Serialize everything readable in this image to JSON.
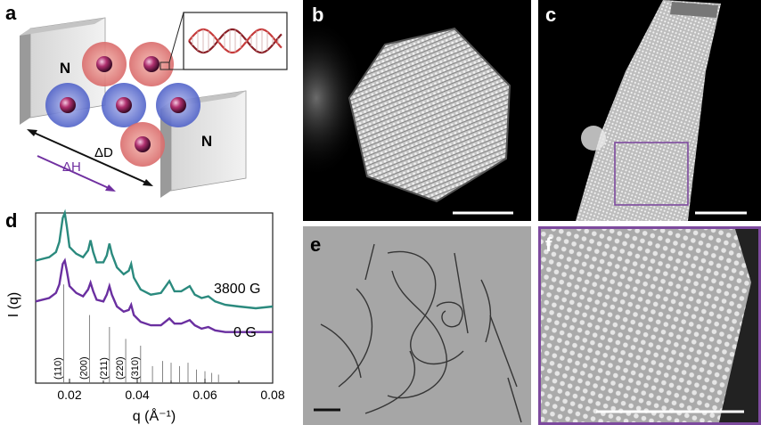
{
  "panel_labels": {
    "a": "a",
    "b": "b",
    "c": "c",
    "d": "d",
    "e": "e",
    "f": "f"
  },
  "schematic": {
    "magnet_label": "N",
    "delta_d": "ΔD",
    "delta_h": "ΔH"
  },
  "colors": {
    "accent_purple": "#7030a0",
    "teal": "#2b8a7e",
    "inset_border": "#7d4a9e",
    "red_shell": "#d96a6a",
    "blue_shell": "#5a6fd1"
  },
  "chart_data": {
    "type": "line",
    "ylabel": "I (q)",
    "xlabel": "q (Å⁻¹)",
    "xlim": [
      0.01,
      0.08
    ],
    "xticks": [
      "0.02",
      "0.04",
      "0.06",
      "0.08"
    ],
    "grid": false,
    "series": [
      {
        "name": "3800 G",
        "color": "#2b8a7e",
        "x": [
          0.01,
          0.014,
          0.016,
          0.017,
          0.018,
          0.0186,
          0.0192,
          0.02,
          0.022,
          0.024,
          0.0255,
          0.0262,
          0.027,
          0.028,
          0.03,
          0.031,
          0.0318,
          0.0325,
          0.034,
          0.036,
          0.0375,
          0.0382,
          0.039,
          0.041,
          0.044,
          0.047,
          0.0495,
          0.051,
          0.053,
          0.0555,
          0.057,
          0.059,
          0.061,
          0.063,
          0.066,
          0.07,
          0.075,
          0.08
        ],
        "y": [
          0.72,
          0.74,
          0.77,
          0.83,
          0.97,
          1.0,
          0.92,
          0.8,
          0.76,
          0.74,
          0.78,
          0.84,
          0.77,
          0.71,
          0.71,
          0.75,
          0.82,
          0.76,
          0.68,
          0.64,
          0.66,
          0.7,
          0.62,
          0.55,
          0.52,
          0.53,
          0.6,
          0.54,
          0.54,
          0.57,
          0.52,
          0.5,
          0.51,
          0.48,
          0.46,
          0.45,
          0.44,
          0.45
        ]
      },
      {
        "name": "0 G",
        "color": "#6a2fa0",
        "x": [
          0.01,
          0.014,
          0.016,
          0.017,
          0.018,
          0.0186,
          0.0192,
          0.02,
          0.022,
          0.024,
          0.0255,
          0.0262,
          0.027,
          0.028,
          0.03,
          0.031,
          0.0318,
          0.0325,
          0.034,
          0.036,
          0.0375,
          0.0382,
          0.039,
          0.041,
          0.044,
          0.047,
          0.0495,
          0.051,
          0.053,
          0.0555,
          0.057,
          0.059,
          0.061,
          0.063,
          0.066,
          0.07,
          0.075,
          0.08
        ],
        "y": [
          0.48,
          0.5,
          0.53,
          0.58,
          0.7,
          0.72,
          0.66,
          0.57,
          0.53,
          0.51,
          0.55,
          0.59,
          0.54,
          0.49,
          0.48,
          0.52,
          0.57,
          0.52,
          0.45,
          0.42,
          0.43,
          0.46,
          0.4,
          0.36,
          0.34,
          0.34,
          0.38,
          0.35,
          0.35,
          0.37,
          0.34,
          0.32,
          0.33,
          0.31,
          0.3,
          0.3,
          0.3,
          0.3
        ]
      }
    ],
    "reflections": [
      {
        "label": "(110)",
        "q": 0.0183,
        "h": 0.58
      },
      {
        "label": "(200)",
        "q": 0.0259,
        "h": 0.4
      },
      {
        "label": "(211)",
        "q": 0.0318,
        "h": 0.33
      },
      {
        "label": "(220)",
        "q": 0.0366,
        "h": 0.26
      },
      {
        "label": "(310)",
        "q": 0.041,
        "h": 0.22
      },
      {
        "q": 0.0445,
        "h": 0.1
      },
      {
        "q": 0.0475,
        "h": 0.13
      },
      {
        "q": 0.05,
        "h": 0.12
      },
      {
        "q": 0.0525,
        "h": 0.1
      },
      {
        "q": 0.055,
        "h": 0.12
      },
      {
        "q": 0.0575,
        "h": 0.08
      },
      {
        "q": 0.06,
        "h": 0.07
      },
      {
        "q": 0.062,
        "h": 0.06
      },
      {
        "q": 0.064,
        "h": 0.05
      }
    ]
  }
}
